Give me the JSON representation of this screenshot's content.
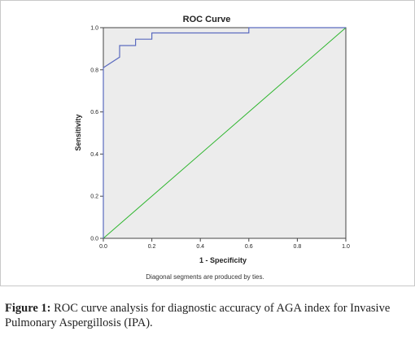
{
  "chart_data": {
    "type": "line",
    "title": "ROC Curve",
    "xlabel": "1 - Specificity",
    "ylabel": "Sensitivity",
    "xlim": [
      0.0,
      1.0
    ],
    "ylim": [
      0.0,
      1.0
    ],
    "x_ticks": [
      "0.0",
      "0.2",
      "0.4",
      "0.6",
      "0.8",
      "1.0"
    ],
    "y_ticks": [
      "0.0",
      "0.2",
      "0.4",
      "0.6",
      "0.8",
      "1.0"
    ],
    "grid": false,
    "note": "Diagonal segments are produced by ties.",
    "series": [
      {
        "role": "roc",
        "color": "#5b6bbf",
        "x": [
          0.0,
          0.0,
          0.067,
          0.067,
          0.133,
          0.133,
          0.2,
          0.2,
          0.6,
          0.6,
          1.0
        ],
        "y": [
          0.0,
          0.81,
          0.86,
          0.915,
          0.915,
          0.945,
          0.945,
          0.975,
          0.975,
          1.0,
          1.0
        ]
      },
      {
        "role": "reference",
        "color": "#2bb52b",
        "x": [
          0.0,
          1.0
        ],
        "y": [
          0.0,
          1.0
        ]
      }
    ]
  },
  "caption": {
    "label": "Figure 1:",
    "text": "ROC curve analysis for diagnostic accuracy of AGA index for Invasive Pulmonary Aspergillosis (IPA)."
  }
}
